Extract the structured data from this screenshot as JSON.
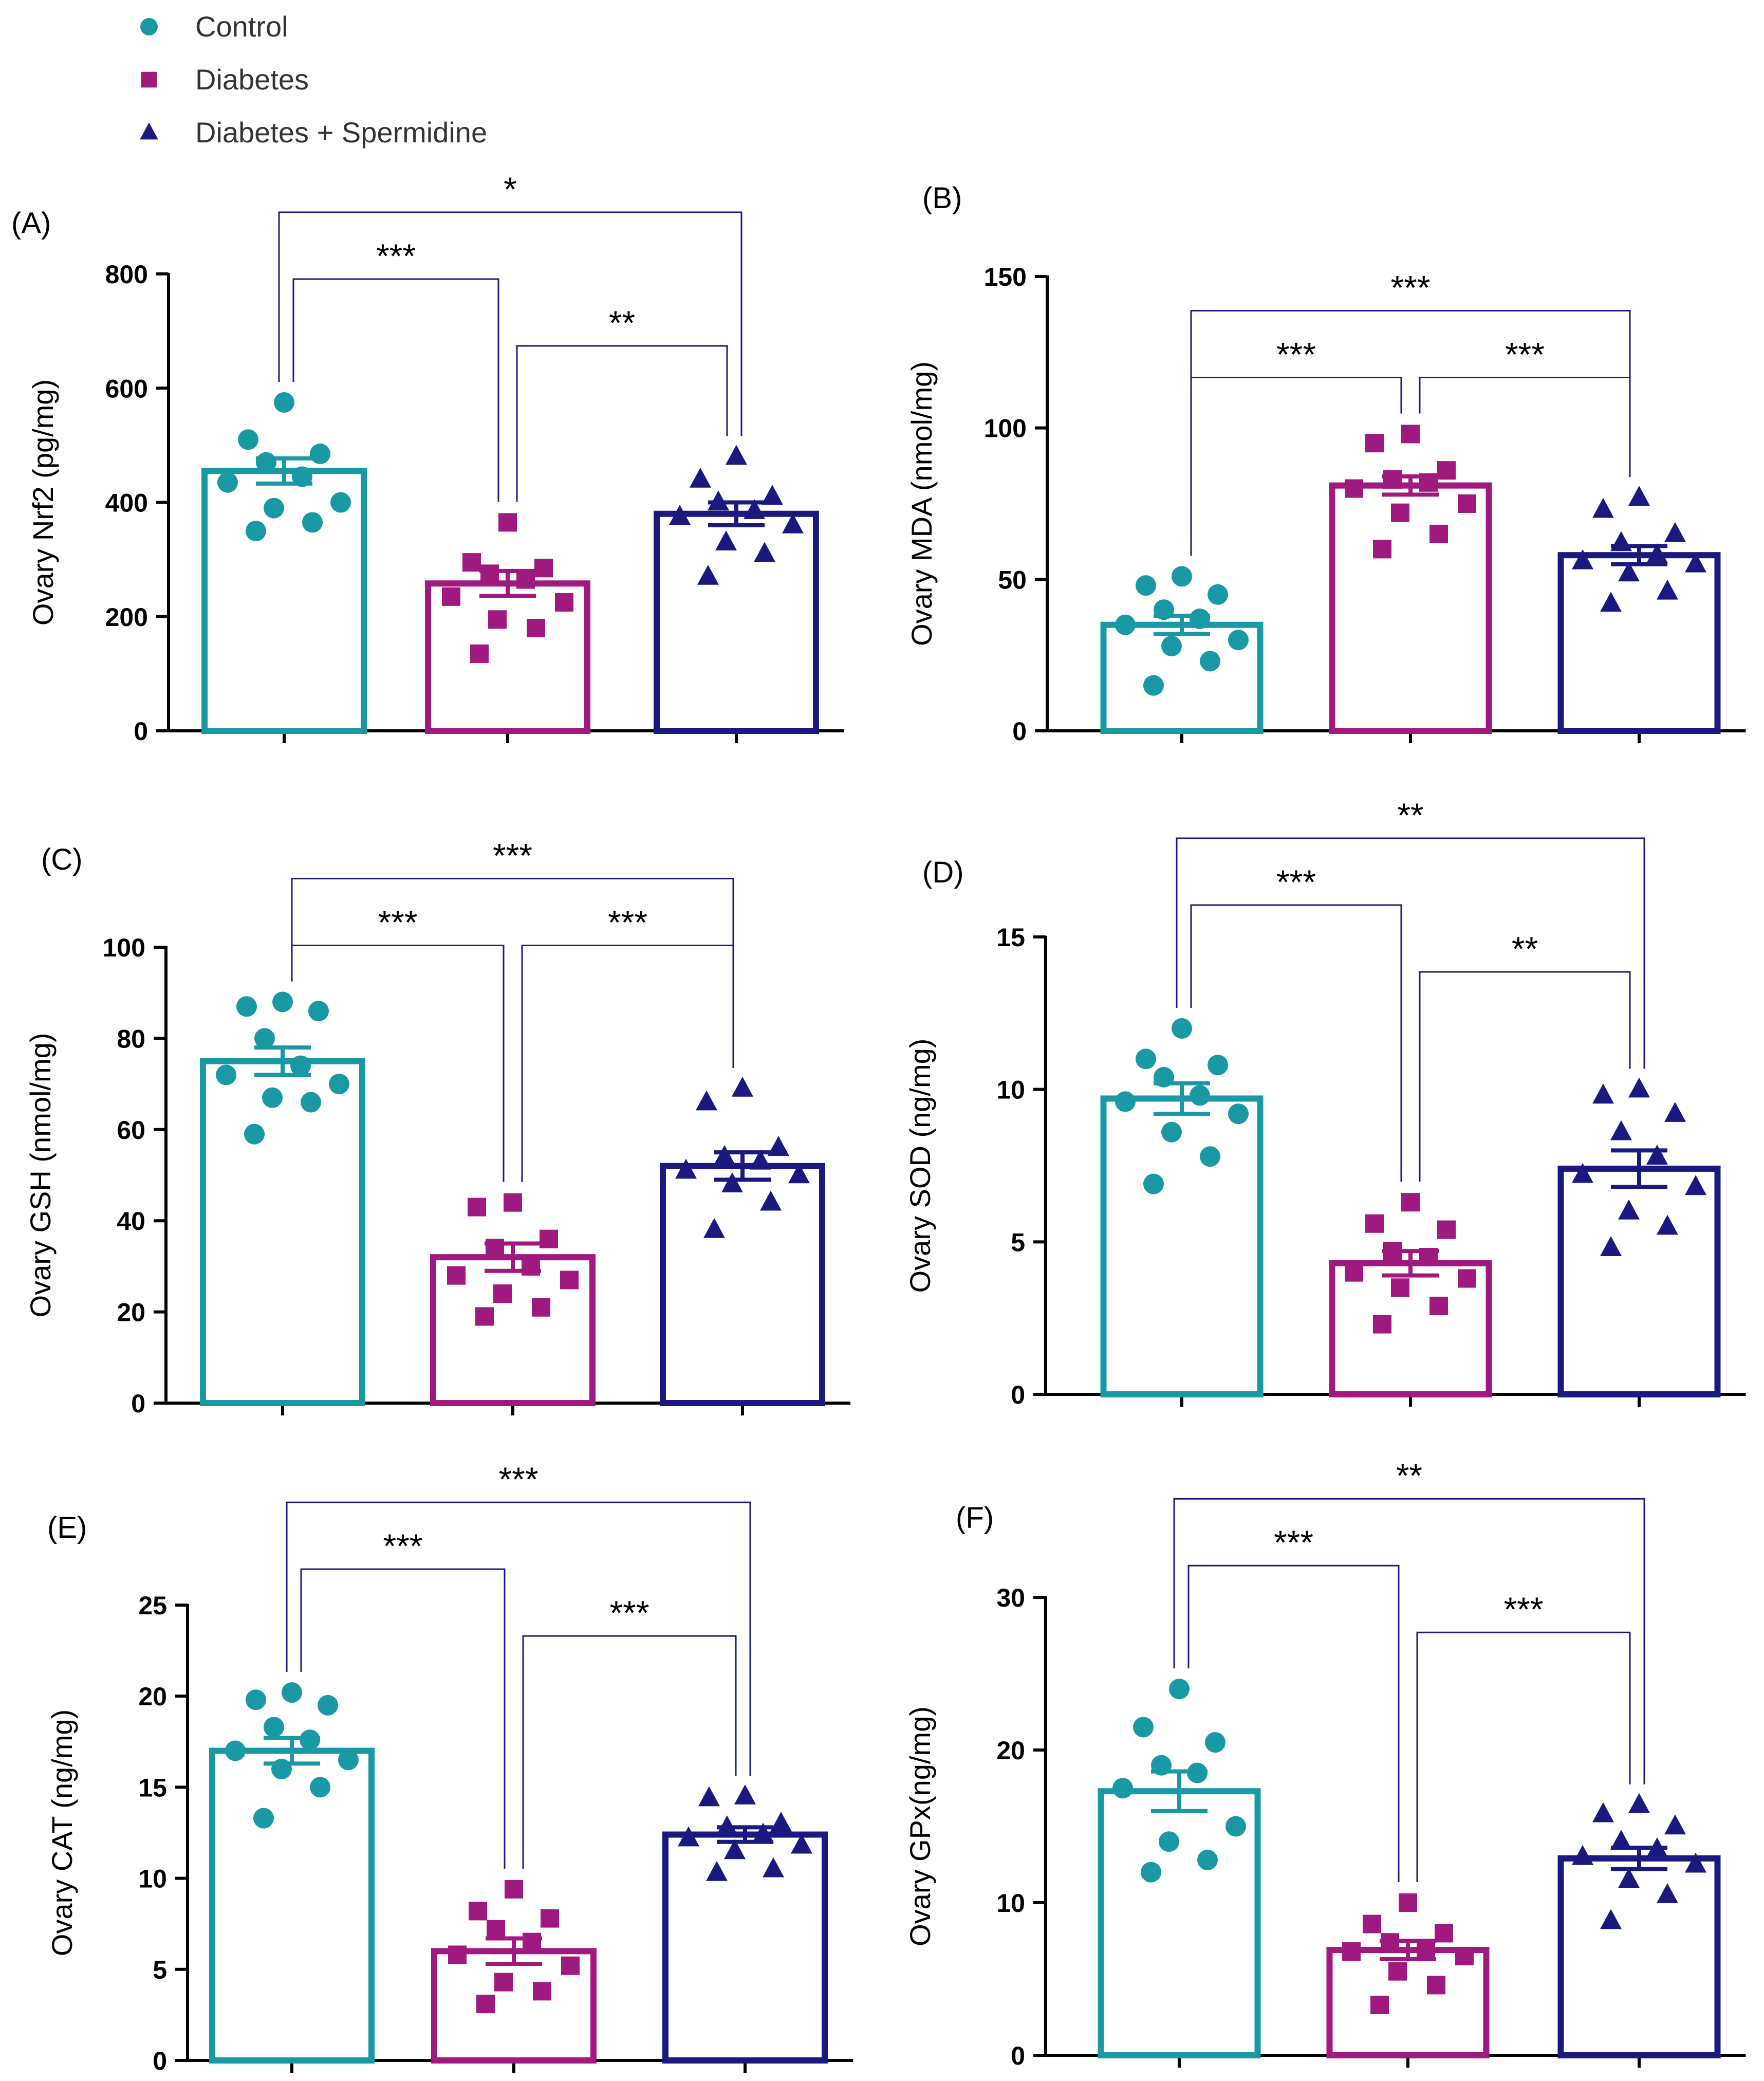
{
  "colors": {
    "control": "#1899A3",
    "diabetes": "#A0197E",
    "diabetes_spermidine": "#1B1980",
    "axis": "#000000",
    "bracket": "#1B1980"
  },
  "legend": [
    {
      "label": "Control",
      "marker": "circle",
      "color_key": "control"
    },
    {
      "label": "Diabetes",
      "marker": "square",
      "color_key": "diabetes"
    },
    {
      "label": "Diabetes + Spermidine",
      "marker": "triangle",
      "color_key": "diabetes_spermidine"
    }
  ],
  "chart_data": [
    {
      "type": "bar",
      "panel": "(A)",
      "ylabel": "Ovary Nrf2 (pg/mg)",
      "ylim": [
        0,
        800
      ],
      "yticks": [
        0,
        200,
        400,
        600,
        800
      ],
      "categories": [
        "Control",
        "Diabetes",
        "Diabetes + Spermidine"
      ],
      "means": [
        455,
        258,
        380
      ],
      "sem": [
        22,
        22,
        20
      ],
      "points": [
        [
          575,
          510,
          485,
          470,
          445,
          435,
          400,
          390,
          365,
          350
        ],
        [
          365,
          295,
          285,
          275,
          265,
          235,
          225,
          195,
          180,
          135
        ],
        [
          480,
          440,
          410,
          400,
          385,
          375,
          360,
          330,
          310,
          270
        ]
      ],
      "comparisons": [
        {
          "from": 0,
          "to": 2,
          "label": "*",
          "level": 2
        },
        {
          "from": 0,
          "to": 1,
          "label": "***",
          "level": 1
        },
        {
          "from": 1,
          "to": 2,
          "label": "**",
          "level": 0
        }
      ]
    },
    {
      "type": "bar",
      "panel": "(B)",
      "ylabel": "Ovary MDA (nmol/mg)",
      "ylim": [
        0,
        150
      ],
      "yticks": [
        0,
        50,
        100,
        150
      ],
      "categories": [
        "Control",
        "Diabetes",
        "Diabetes + Spermidine"
      ],
      "means": [
        35,
        81,
        58
      ],
      "sem": [
        3,
        3,
        3
      ],
      "points": [
        [
          51,
          48,
          45,
          40,
          37,
          35,
          30,
          28,
          23,
          15
        ],
        [
          98,
          95,
          86,
          83,
          82,
          80,
          75,
          72,
          65,
          60
        ],
        [
          77,
          73,
          65,
          62,
          58,
          56,
          55,
          52,
          46,
          42
        ]
      ],
      "comparisons": [
        {
          "from": 0,
          "to": 2,
          "label": "***",
          "level": 1
        },
        {
          "from": 0,
          "to": 1,
          "label": "***",
          "level": 0
        },
        {
          "from": 1,
          "to": 2,
          "label": "***",
          "level": 0
        }
      ]
    },
    {
      "type": "bar",
      "panel": "(C)",
      "ylabel": "Ovary GSH (nmol/mg)",
      "ylim": [
        0,
        100
      ],
      "yticks": [
        0,
        20,
        40,
        60,
        80,
        100
      ],
      "categories": [
        "Control",
        "Diabetes",
        "Diabetes + Spermidine"
      ],
      "means": [
        75,
        32,
        52
      ],
      "sem": [
        3,
        3,
        3
      ],
      "points": [
        [
          88,
          87,
          86,
          80,
          74,
          72,
          70,
          67,
          66,
          59
        ],
        [
          44,
          43,
          36,
          34,
          30,
          28,
          27,
          24,
          21,
          19
        ],
        [
          69,
          66,
          56,
          54,
          53,
          51,
          50,
          48,
          44,
          38
        ]
      ],
      "comparisons": [
        {
          "from": 0,
          "to": 2,
          "label": "***",
          "level": 1
        },
        {
          "from": 0,
          "to": 1,
          "label": "***",
          "level": 0
        },
        {
          "from": 1,
          "to": 2,
          "label": "***",
          "level": 0
        }
      ]
    },
    {
      "type": "bar",
      "panel": "(D)",
      "ylabel": "Ovary SOD (ng/mg)",
      "ylim": [
        0,
        15
      ],
      "yticks": [
        0,
        5,
        10,
        15
      ],
      "categories": [
        "Control",
        "Diabetes",
        "Diabetes + Spermidine"
      ],
      "means": [
        9.7,
        4.3,
        7.4
      ],
      "sem": [
        0.5,
        0.4,
        0.6
      ],
      "points": [
        [
          12.0,
          11.0,
          10.8,
          10.4,
          9.8,
          9.6,
          9.2,
          8.6,
          7.8,
          6.9
        ],
        [
          6.3,
          5.6,
          5.4,
          4.7,
          4.5,
          4.0,
          3.8,
          3.5,
          2.9,
          2.3
        ],
        [
          10.0,
          9.8,
          9.2,
          8.6,
          7.8,
          7.2,
          6.8,
          6.0,
          5.5,
          4.8
        ]
      ],
      "comparisons": [
        {
          "from": 0,
          "to": 2,
          "label": "**",
          "level": 2
        },
        {
          "from": 0,
          "to": 1,
          "label": "***",
          "level": 1
        },
        {
          "from": 1,
          "to": 2,
          "label": "**",
          "level": 0
        }
      ]
    },
    {
      "type": "bar",
      "panel": "(E)",
      "ylabel": "Ovary CAT (ng/mg)",
      "ylim": [
        0,
        25
      ],
      "yticks": [
        0,
        5,
        10,
        15,
        20,
        25
      ],
      "categories": [
        "Control",
        "Diabetes",
        "Diabetes + Spermidine"
      ],
      "means": [
        17.0,
        6.0,
        12.4
      ],
      "sem": [
        0.7,
        0.7,
        0.4
      ],
      "points": [
        [
          20.2,
          19.8,
          19.5,
          18.3,
          17.6,
          17.0,
          16.5,
          16.0,
          15.0,
          13.3
        ],
        [
          9.4,
          8.2,
          7.8,
          7.2,
          6.5,
          5.8,
          5.2,
          4.3,
          3.8,
          3.1
        ],
        [
          14.5,
          14.4,
          13.0,
          12.8,
          12.4,
          12.2,
          11.8,
          11.5,
          10.5,
          10.3
        ]
      ],
      "comparisons": [
        {
          "from": 0,
          "to": 2,
          "label": "***",
          "level": 2
        },
        {
          "from": 0,
          "to": 1,
          "label": "***",
          "level": 1
        },
        {
          "from": 1,
          "to": 2,
          "label": "***",
          "level": 0
        }
      ]
    },
    {
      "type": "bar",
      "panel": "(F)",
      "ylabel": "Ovary GPx(ng/mg)",
      "ylim": [
        0,
        30
      ],
      "yticks": [
        0,
        10,
        20,
        30
      ],
      "categories": [
        "Control",
        "Diabetes",
        "Diabetes + Spermidine"
      ],
      "means": [
        17.3,
        6.9,
        12.9
      ],
      "sem": [
        1.3,
        0.6,
        0.7
      ],
      "points": [
        [
          24.0,
          21.5,
          20.5,
          19.0,
          18.5,
          17.5,
          15.0,
          14.0,
          12.8,
          12.0
        ],
        [
          10.0,
          8.6,
          8.0,
          7.4,
          7.0,
          6.8,
          6.5,
          5.5,
          4.6,
          3.3
        ],
        [
          16.4,
          15.8,
          15.0,
          14.0,
          13.5,
          13.0,
          12.5,
          11.5,
          10.5,
          8.8
        ]
      ],
      "comparisons": [
        {
          "from": 0,
          "to": 2,
          "label": "**",
          "level": 2
        },
        {
          "from": 0,
          "to": 1,
          "label": "***",
          "level": 1
        },
        {
          "from": 1,
          "to": 2,
          "label": "***",
          "level": 0
        }
      ]
    }
  ]
}
